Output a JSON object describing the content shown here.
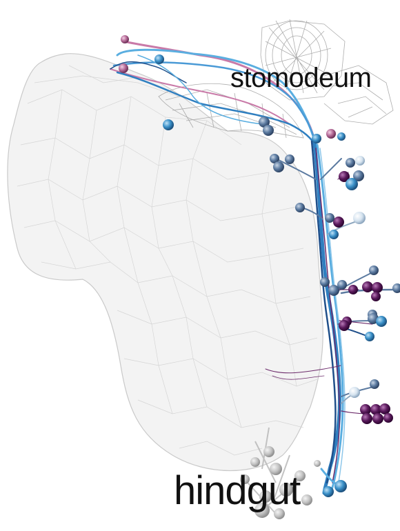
{
  "labels": {
    "stomodeum": "stomodeum",
    "hindgut": "hindgut"
  },
  "colors": {
    "background": "#ffffff",
    "body_outline": "#c9c9c9",
    "body_fill": "#eeeeee",
    "stomodeum_mesh": "#9e9e9e",
    "hindgut_cells": "#c4c4c4",
    "neuron_light_blue": "#5aaee0",
    "neuron_mid_blue": "#2f7fc0",
    "neuron_dark_blue": "#1f4f8a",
    "neuron_slate": "#5b7aa0",
    "neuron_pink": "#c97aa8",
    "neuron_plum": "#6b2a6a",
    "neuron_dark_purple": "#4a0f4c",
    "soma_pale": "#dce8f2"
  },
  "icons": [
    "body-outline-mesh",
    "stomodeum-mesh",
    "hindgut-cell-cluster",
    "neuron-bundle",
    "neuron-soma"
  ]
}
